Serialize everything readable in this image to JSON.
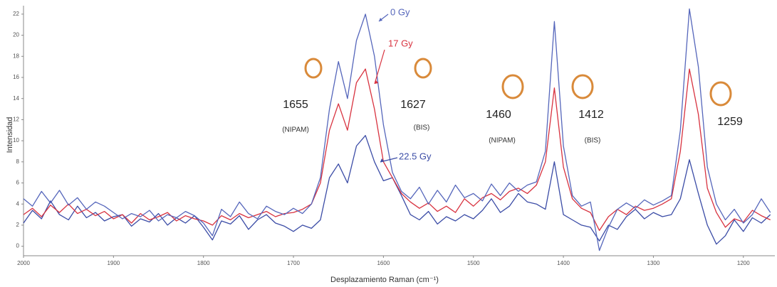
{
  "chart_data": {
    "type": "line",
    "x_label": "Desplazamiento Raman (cm⁻¹)",
    "y_label": "Intensidad",
    "xlim": [
      2000,
      1165
    ],
    "ylim": [
      -0.9,
      22.8
    ],
    "xticks": [
      2000,
      1900,
      1800,
      1700,
      1600,
      1500,
      1400,
      1300,
      1200
    ],
    "yticks": [
      0,
      2,
      4,
      6,
      8,
      10,
      12,
      14,
      16,
      18,
      20,
      22
    ],
    "x": [
      2000,
      1990,
      1980,
      1970,
      1960,
      1950,
      1940,
      1930,
      1920,
      1910,
      1900,
      1890,
      1880,
      1870,
      1860,
      1850,
      1840,
      1830,
      1820,
      1810,
      1800,
      1790,
      1780,
      1770,
      1760,
      1750,
      1740,
      1730,
      1720,
      1710,
      1700,
      1690,
      1680,
      1670,
      1660,
      1650,
      1640,
      1630,
      1620,
      1610,
      1600,
      1590,
      1580,
      1570,
      1560,
      1550,
      1540,
      1530,
      1520,
      1510,
      1500,
      1490,
      1480,
      1470,
      1460,
      1450,
      1440,
      1430,
      1420,
      1410,
      1400,
      1390,
      1380,
      1370,
      1360,
      1350,
      1340,
      1330,
      1320,
      1310,
      1300,
      1290,
      1280,
      1270,
      1260,
      1250,
      1240,
      1230,
      1220,
      1210,
      1200,
      1190,
      1180,
      1170
    ],
    "series": [
      {
        "name": "0 Gy",
        "color": "#5566bb",
        "values": [
          4.5,
          3.8,
          5.2,
          4.1,
          5.3,
          3.9,
          4.6,
          3.5,
          4.2,
          3.8,
          3.2,
          2.6,
          3.1,
          2.8,
          3.4,
          2.4,
          3.0,
          2.7,
          3.3,
          2.9,
          2.2,
          1.0,
          3.5,
          2.8,
          4.2,
          3.1,
          2.6,
          3.8,
          3.3,
          3.0,
          3.6,
          3.1,
          4.0,
          6.5,
          13.0,
          17.5,
          14.0,
          19.5,
          22.0,
          18.0,
          11.5,
          7.0,
          5.2,
          4.5,
          5.6,
          4.0,
          5.3,
          4.2,
          5.8,
          4.6,
          5.0,
          4.3,
          5.9,
          4.8,
          6.0,
          5.2,
          5.8,
          6.1,
          9.0,
          21.3,
          9.5,
          4.8,
          3.8,
          4.2,
          -0.4,
          1.8,
          3.5,
          4.1,
          3.6,
          4.4,
          3.9,
          4.3,
          4.8,
          11.0,
          22.5,
          17.0,
          7.5,
          4.0,
          2.5,
          3.5,
          2.2,
          3.0,
          4.5,
          3.2
        ]
      },
      {
        "name": "17 Gy",
        "color": "#d8323f",
        "values": [
          3.0,
          3.6,
          2.8,
          3.9,
          3.2,
          4.0,
          3.1,
          3.5,
          2.9,
          3.3,
          2.6,
          3.0,
          2.2,
          3.1,
          2.5,
          2.8,
          3.2,
          2.4,
          2.9,
          2.6,
          2.4,
          2.0,
          2.9,
          2.5,
          3.1,
          2.7,
          3.0,
          3.3,
          2.8,
          3.1,
          3.2,
          3.5,
          4.0,
          6.0,
          11.0,
          13.5,
          11.0,
          15.5,
          16.8,
          13.0,
          8.0,
          6.5,
          5.0,
          4.2,
          3.6,
          4.1,
          3.3,
          3.8,
          3.2,
          4.5,
          3.8,
          4.6,
          5.0,
          4.4,
          5.2,
          5.5,
          5.0,
          5.8,
          8.0,
          15.0,
          7.5,
          4.5,
          3.6,
          3.2,
          1.5,
          2.8,
          3.5,
          3.0,
          3.8,
          3.4,
          3.6,
          4.0,
          4.5,
          9.0,
          16.8,
          12.5,
          5.5,
          3.2,
          1.8,
          2.6,
          2.3,
          3.4,
          2.9,
          2.5
        ]
      },
      {
        "name": "22.5 Gy",
        "color": "#3b4ca6",
        "values": [
          2.2,
          3.4,
          2.6,
          4.3,
          3.0,
          2.5,
          3.8,
          2.7,
          3.2,
          2.4,
          2.8,
          3.0,
          1.9,
          2.6,
          2.3,
          3.1,
          2.0,
          2.7,
          2.2,
          2.9,
          1.8,
          0.6,
          2.4,
          2.1,
          2.9,
          1.6,
          2.5,
          3.0,
          2.2,
          1.9,
          1.4,
          2.0,
          1.7,
          2.5,
          6.5,
          7.8,
          6.0,
          9.5,
          10.5,
          8.0,
          6.2,
          6.5,
          4.8,
          3.0,
          2.5,
          3.3,
          2.1,
          2.8,
          2.4,
          3.0,
          2.6,
          3.4,
          4.5,
          3.2,
          3.8,
          5.0,
          4.2,
          4.0,
          3.5,
          8.0,
          3.0,
          2.5,
          2.0,
          1.8,
          0.5,
          2.0,
          1.6,
          2.8,
          3.5,
          2.6,
          3.2,
          2.8,
          3.0,
          4.5,
          8.2,
          5.0,
          2.0,
          0.2,
          1.0,
          2.5,
          1.4,
          2.7,
          2.2,
          3.0
        ]
      }
    ],
    "peaks": [
      {
        "label": "1655",
        "note": "(NIPAM)"
      },
      {
        "label": "1627",
        "note": "(BIS)"
      },
      {
        "label": "1460",
        "note": "(NIPAM)"
      },
      {
        "label": "1412",
        "note": "(BIS)"
      },
      {
        "label": "1259"
      }
    ]
  }
}
